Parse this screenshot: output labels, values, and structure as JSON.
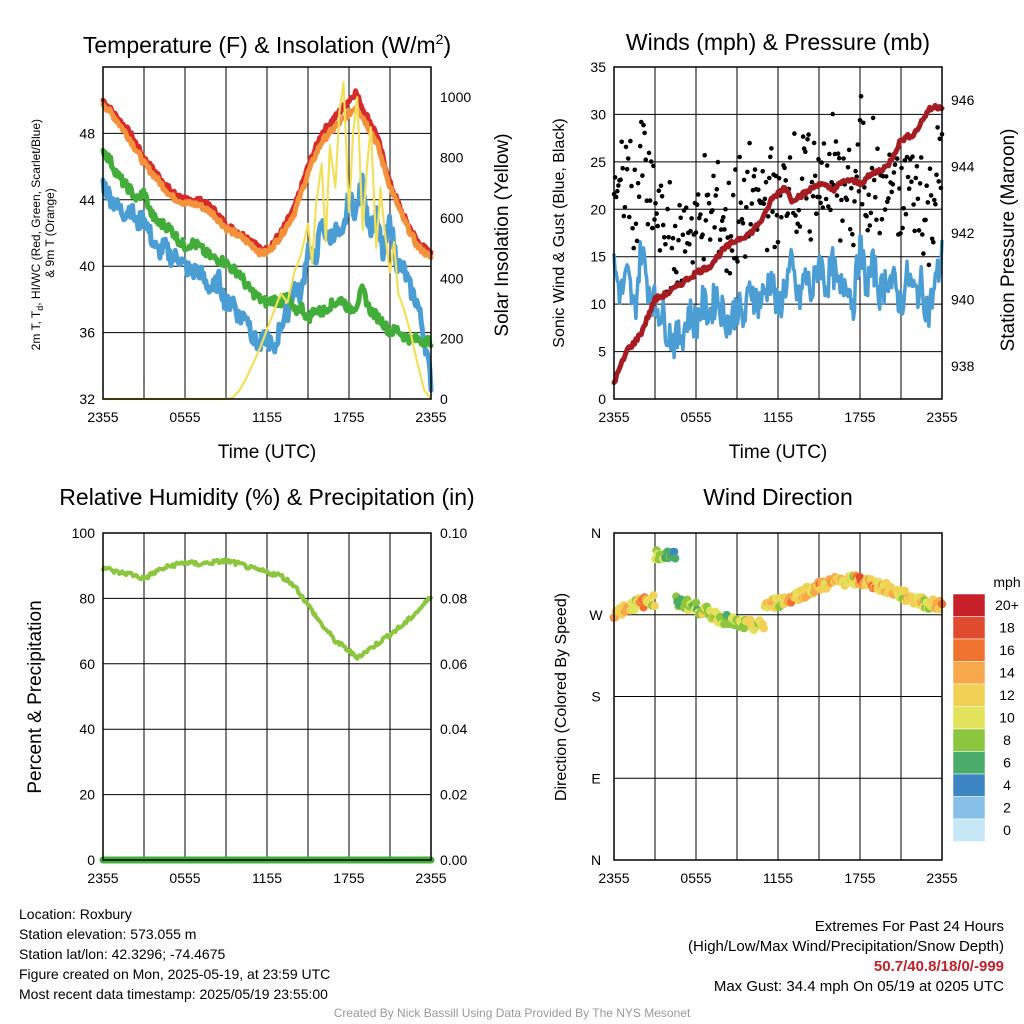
{
  "chart_data": [
    {
      "type": "line",
      "title": "Temperature (F) & Insolation (W/m",
      "title_sup": "2",
      "title_end": ")",
      "xlabel": "Time (UTC)",
      "ylabel_left": [
        "2m T, T",
        "d",
        ", HI/WC (Red, Green, Scarlet/Blue)",
        "& 9m T (Orange)"
      ],
      "ylabel_right": "Solar Insolation (Yellow)",
      "x_ticks": [
        "2355",
        "0555",
        "1155",
        "1755",
        "2355"
      ],
      "y_left_ticks": [
        32,
        36,
        40,
        44,
        48
      ],
      "y_left_range": [
        32,
        52
      ],
      "y_right_ticks": [
        0,
        200,
        400,
        600,
        800,
        1000
      ],
      "y_right_range": [
        0,
        1100
      ],
      "x_range_hours": [
        0,
        24
      ],
      "series": [
        {
          "color": "#d62b2b",
          "axis": "left",
          "x": [
            0,
            1,
            2,
            3,
            4,
            5,
            6,
            7,
            8,
            9,
            10,
            11,
            11.5,
            12,
            13,
            14,
            15,
            15.5,
            16,
            17,
            18,
            18.5,
            19,
            20,
            21,
            22,
            23,
            24
          ],
          "y": [
            50,
            49,
            48,
            46.5,
            45.5,
            44.5,
            44,
            44,
            43.5,
            42.5,
            42,
            41.5,
            41,
            41,
            42,
            43.5,
            46,
            47,
            48,
            49,
            50,
            50.5,
            49.5,
            48,
            45,
            43,
            41.5,
            40.7
          ]
        },
        {
          "color": "#f3923b",
          "axis": "left",
          "x": [
            0,
            1,
            2,
            3,
            4,
            5,
            6,
            7,
            8,
            9,
            10,
            11,
            11.5,
            12,
            13,
            14,
            15,
            15.5,
            16,
            17,
            18,
            18.5,
            19,
            20,
            21,
            22,
            23,
            24
          ],
          "y": [
            49.8,
            48.8,
            47.6,
            46.2,
            45.2,
            44.2,
            43.8,
            43.7,
            43.2,
            42.3,
            41.8,
            41.2,
            40.8,
            40.8,
            41.8,
            43.2,
            45.6,
            46.6,
            47.5,
            48.4,
            49.2,
            49.6,
            49,
            47.5,
            44.8,
            42.8,
            41.2,
            40.5
          ]
        },
        {
          "color": "#4a9ed3",
          "axis": "left",
          "x": [
            0,
            0.5,
            1,
            1.5,
            2,
            2.5,
            3,
            3.5,
            4,
            4.5,
            5,
            5.5,
            6,
            6.5,
            7,
            7.5,
            8,
            8.5,
            9,
            9.5,
            10,
            10.5,
            11,
            11.5,
            12,
            12.5,
            13,
            13.5,
            14,
            14.5,
            15,
            15.5,
            16,
            16.5,
            17,
            17.5,
            18,
            18.5,
            19,
            19.5,
            20,
            20.5,
            21,
            21.5,
            22,
            22.5,
            23,
            23.5,
            24
          ],
          "y": [
            45,
            44.2,
            43.6,
            43.2,
            43.5,
            42.5,
            43,
            41.8,
            40.8,
            41.2,
            40.5,
            40.6,
            40,
            39.6,
            39.8,
            39,
            38.6,
            39.2,
            37.6,
            38,
            36.8,
            37.2,
            35.6,
            35.2,
            35.8,
            34.8,
            36.5,
            37.2,
            38.8,
            38.2,
            41.2,
            40.2,
            42.6,
            41.6,
            42.2,
            41.5,
            44.2,
            43.2,
            45.2,
            42.2,
            43,
            40.6,
            42.8,
            40.2,
            39.8,
            38.6,
            37.8,
            35.8,
            33
          ]
        },
        {
          "color": "#43ad3a",
          "axis": "left",
          "x": [
            0,
            0.5,
            1,
            1.5,
            2,
            2.5,
            3,
            3.5,
            4,
            4.5,
            5,
            5.5,
            6,
            6.5,
            7,
            7.5,
            8,
            8.5,
            9,
            9.5,
            10,
            10.5,
            11,
            11.5,
            12,
            12.5,
            13,
            13.5,
            14,
            14.5,
            15,
            15.5,
            16,
            16.5,
            17,
            17.5,
            18,
            18.5,
            19,
            19.5,
            20,
            20.5,
            21,
            21.5,
            22,
            22.5,
            23,
            23.5,
            24
          ],
          "y": [
            47,
            46.4,
            45.6,
            45,
            44.6,
            44,
            44.5,
            43.2,
            42.6,
            42.5,
            42.2,
            41.6,
            41.2,
            41.4,
            41.2,
            40.8,
            40.5,
            40.4,
            40.2,
            39.8,
            39.6,
            38.8,
            38.4,
            38,
            37.8,
            38,
            37.8,
            38.2,
            37.2,
            37.6,
            36.8,
            37.4,
            37.2,
            37.6,
            37.8,
            38,
            37.4,
            37.6,
            38.6,
            37.4,
            37,
            36.6,
            36,
            36.2,
            35.8,
            35.6,
            35.6,
            35.5,
            35.5
          ]
        },
        {
          "color": "#f3e05a",
          "axis": "right",
          "x": [
            0,
            1,
            2,
            3,
            4,
            5,
            6,
            7,
            8,
            9,
            9.5,
            10,
            10.5,
            11,
            11.5,
            12,
            12.5,
            13,
            13.5,
            14,
            14.5,
            15,
            15.3,
            15.6,
            16,
            16.3,
            16.6,
            17,
            17.3,
            17.6,
            18,
            18.3,
            18.6,
            19,
            19.3,
            19.6,
            20,
            20.3,
            20.6,
            21,
            21.3,
            21.6,
            22,
            22.5,
            23,
            23.5,
            24
          ],
          "y": [
            0,
            0,
            0,
            0,
            0,
            0,
            0,
            0,
            0,
            0,
            5,
            30,
            70,
            120,
            170,
            230,
            290,
            350,
            320,
            420,
            480,
            580,
            450,
            650,
            780,
            520,
            840,
            700,
            950,
            1050,
            620,
            880,
            1000,
            560,
            760,
            900,
            500,
            700,
            560,
            420,
            520,
            350,
            300,
            220,
            120,
            30,
            0
          ]
        }
      ]
    },
    {
      "type": "line",
      "title": "Winds (mph) & Pressure (mb)",
      "xlabel": "Time (UTC)",
      "ylabel_left": "Sonic Wind & Gust (Blue, Black)",
      "ylabel_right": "Station Pressure (Maroon)",
      "x_ticks": [
        "2355",
        "0555",
        "1155",
        "1755",
        "2355"
      ],
      "y_left_ticks": [
        0,
        5,
        10,
        15,
        20,
        25,
        30,
        35
      ],
      "y_left_range": [
        0,
        35
      ],
      "y_right_ticks": [
        938,
        940,
        942,
        944,
        946
      ],
      "y_right_range": [
        937,
        947
      ],
      "series": [
        {
          "name": "wind",
          "color": "#4a9ed3",
          "x": [
            0,
            0.5,
            1,
            1.5,
            2,
            2.5,
            3,
            3.5,
            4,
            4.5,
            5,
            5.5,
            6,
            6.5,
            7,
            7.5,
            8,
            8.5,
            9,
            9.5,
            10,
            10.5,
            11,
            11.5,
            12,
            12.5,
            13,
            13.5,
            14,
            14.5,
            15,
            15.5,
            16,
            16.5,
            17,
            17.5,
            18,
            18.5,
            19,
            19.5,
            20,
            20.5,
            21,
            21.5,
            22,
            22.5,
            23,
            23.5,
            24
          ],
          "y": [
            14,
            11,
            13,
            9,
            16,
            12,
            10,
            9,
            7,
            6,
            7,
            9,
            8,
            10,
            9,
            11,
            9,
            8,
            10,
            8,
            12,
            10,
            11,
            13,
            9,
            12,
            14,
            10,
            13,
            11,
            15,
            12,
            14,
            11,
            13,
            10,
            16,
            12,
            14,
            11,
            13,
            12,
            10,
            13,
            11,
            12,
            9,
            12,
            15
          ]
        },
        {
          "name": "pressure",
          "color": "#a51c22",
          "x": [
            0,
            0.5,
            1,
            1.5,
            2,
            2.5,
            3,
            4,
            5,
            6,
            7,
            8,
            9,
            10,
            11,
            11.5,
            12,
            12.5,
            13,
            14,
            15,
            16,
            17,
            18,
            19,
            20,
            21,
            22,
            23,
            23.5,
            24
          ],
          "y": [
            937.5,
            938,
            938.5,
            938.7,
            939,
            939.5,
            940,
            940.2,
            940.5,
            940.8,
            941,
            941.5,
            941.8,
            942,
            942.5,
            943,
            943.2,
            943.4,
            943,
            943.2,
            943.5,
            943.3,
            943.6,
            943.5,
            943.8,
            944,
            944.8,
            945,
            945.7,
            945.8,
            945.8
          ]
        }
      ]
    },
    {
      "type": "line",
      "title": "Relative Humidity (%) & Precipitation (in)",
      "ylabel_left": "Percent & Precipitation",
      "x_ticks": [
        "2355",
        "0555",
        "1155",
        "1755",
        "2355"
      ],
      "y_left_ticks": [
        0,
        20,
        40,
        60,
        80,
        100
      ],
      "y_left_range": [
        0,
        100
      ],
      "y_right_ticks": [
        "0.00",
        "0.02",
        "0.04",
        "0.06",
        "0.08",
        "0.10"
      ],
      "series": [
        {
          "name": "rh",
          "color": "#8cc63f",
          "x": [
            0,
            1,
            2,
            3,
            4,
            5,
            6,
            7,
            8,
            9,
            10,
            11,
            12,
            13,
            14,
            15,
            16,
            17,
            18,
            18.5,
            19,
            20,
            21,
            22,
            23,
            24
          ],
          "y": [
            89.5,
            88,
            87.5,
            86,
            88.5,
            90,
            91,
            90.5,
            91,
            91.5,
            90.5,
            89,
            88,
            87,
            84,
            78,
            72,
            67,
            64,
            62,
            63,
            66,
            69,
            72,
            76,
            80.5
          ]
        },
        {
          "name": "precip",
          "color": "#43ad3a",
          "x": [
            0,
            24
          ],
          "y": [
            0,
            0
          ]
        }
      ]
    },
    {
      "type": "scatter",
      "title": "Wind Direction",
      "ylabel_left": "Direction (Colored By Speed)",
      "x_ticks": [
        "2355",
        "0555",
        "1155",
        "1755",
        "2355"
      ],
      "y_ticks": [
        "N",
        "W",
        "S",
        "E",
        "N"
      ],
      "colorbar_title": "mph",
      "colorbar_labels": [
        "20+",
        "18",
        "16",
        "14",
        "12",
        "10",
        "8",
        "6",
        "4",
        "2",
        "0"
      ],
      "colorbar_colors": [
        "#9e1b1f",
        "#c8202a",
        "#e04a2e",
        "#f0722f",
        "#f6a84a",
        "#f2d054",
        "#e2e35a",
        "#8cc63f",
        "#4aab6a",
        "#3b86c3",
        "#86c0e8",
        "#c6e7f8"
      ],
      "speed_bins": [
        20,
        18,
        16,
        14,
        12,
        10,
        8,
        6,
        4,
        2,
        0
      ]
    }
  ],
  "info_left": {
    "line1": "Location: Roxbury",
    "line2": "Station elevation: 573.055 m",
    "line3": "Station lat/lon: 42.3296; -74.4675",
    "line4": "Figure created on Mon, 2025-05-19, at 23:59 UTC",
    "line5": "Most recent data timestamp: 2025/05/19 23:55:00"
  },
  "info_right": {
    "line1": "Extremes For Past 24 Hours",
    "line2": "(High/Low/Max Wind/Precipitation/Snow Depth)",
    "extremes": "50.7/40.8/18/0/-999",
    "line4": "Max Gust: 34.4 mph On 05/19 at 0205 UTC"
  },
  "credit": "Created By Nick Bassill Using Data Provided By The NYS Mesonet"
}
